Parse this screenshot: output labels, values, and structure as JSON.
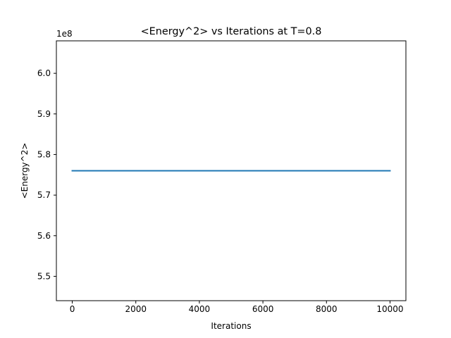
{
  "chart_data": {
    "type": "line",
    "title": "<Energy^2> vs Iterations at T=0.8",
    "xlabel": "Iterations",
    "ylabel": "<Energy^2>",
    "y_offset_label": "1e8",
    "y_scale_factor": 100000000,
    "xlim": [
      -500,
      10500
    ],
    "ylim": [
      544000000,
      608000000
    ],
    "x_ticks": [
      0,
      2000,
      4000,
      6000,
      8000,
      10000
    ],
    "x_tick_labels": [
      "0",
      "2000",
      "4000",
      "6000",
      "8000",
      "10000"
    ],
    "y_ticks": [
      550000000,
      560000000,
      570000000,
      580000000,
      590000000,
      600000000
    ],
    "y_tick_labels": [
      "5.5",
      "5.6",
      "5.7",
      "5.8",
      "5.9",
      "6.0"
    ],
    "grid": false,
    "series": [
      {
        "color": "#1f77b4",
        "x": [
          0,
          10000
        ],
        "y": [
          576000000,
          576000000
        ]
      }
    ]
  }
}
